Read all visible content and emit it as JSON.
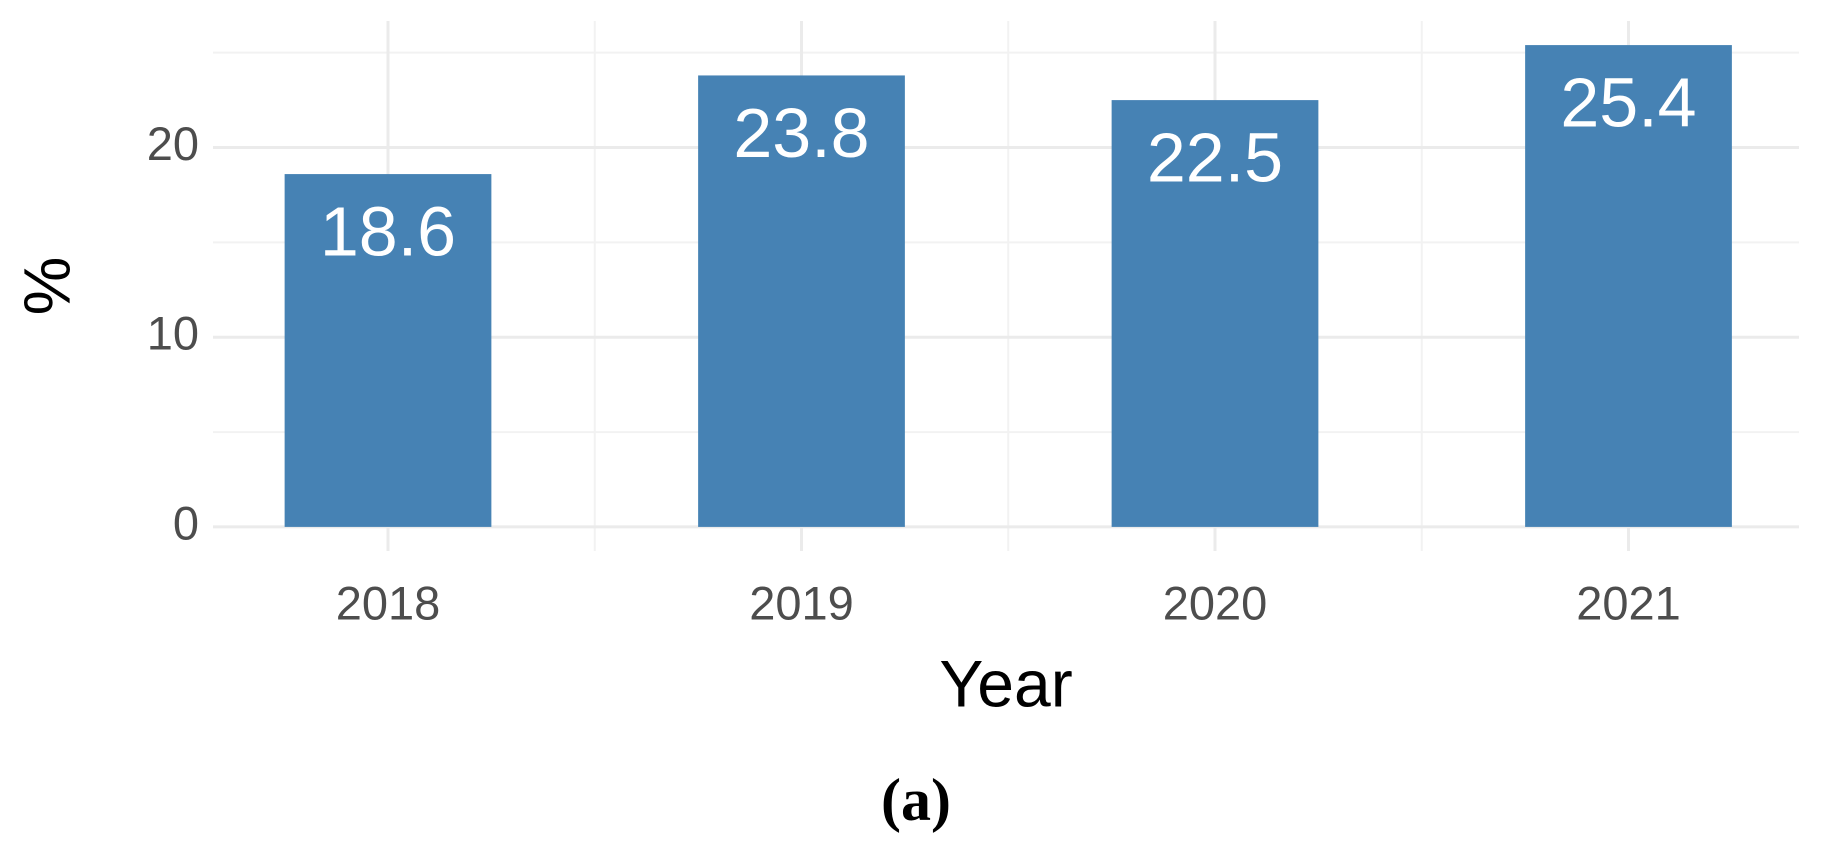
{
  "chart_data": {
    "type": "bar",
    "x_label": "Year",
    "y_label": "%",
    "caption": "(a)",
    "categories": [
      "2018",
      "2019",
      "2020",
      "2021"
    ],
    "values": [
      18.6,
      23.8,
      22.5,
      25.4
    ],
    "color": "#4682b4",
    "ylim": [
      -1.27,
      26.67
    ],
    "yticks": [
      0,
      10,
      20
    ],
    "minor_yticks": [
      5,
      15,
      25
    ],
    "grid": true
  }
}
